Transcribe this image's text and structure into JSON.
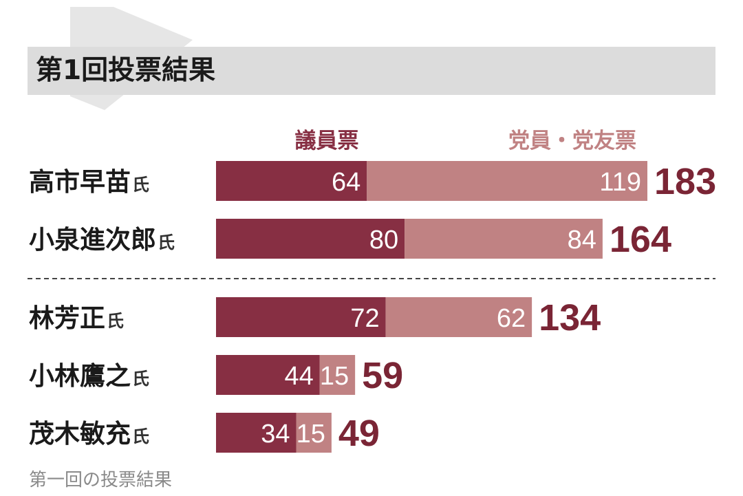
{
  "title": "第1回投票結果",
  "caption": "第一回の投票結果",
  "colors": {
    "diet_members": "#872f43",
    "party_members": "#c08283",
    "total": "#7a2535",
    "title_band": "#dcdcdc"
  },
  "chart_data": {
    "type": "bar",
    "stacked": true,
    "orientation": "horizontal",
    "title": "第1回投票結果",
    "categories": [
      "高市早苗",
      "小泉進次郎",
      "林芳正",
      "小林鷹之",
      "茂木敏充"
    ],
    "name_suffix": "氏",
    "series": [
      {
        "name": "議員票",
        "values": [
          64,
          80,
          72,
          44,
          34
        ]
      },
      {
        "name": "党員・党友票",
        "values": [
          119,
          84,
          62,
          15,
          15
        ]
      }
    ],
    "totals": [
      183,
      164,
      134,
      59,
      49
    ],
    "separator_after_index": 1,
    "grid": false,
    "legend_position": "top"
  }
}
